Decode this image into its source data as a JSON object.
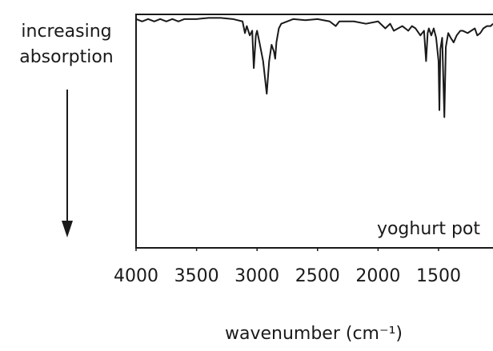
{
  "chart_data": {
    "type": "line",
    "y_label": "increasing absorption",
    "x_label": "wavenumber (cm⁻¹)",
    "annotation": "yoghurt pot",
    "x": [
      4000,
      3950,
      3900,
      3850,
      3800,
      3750,
      3700,
      3650,
      3600,
      3500,
      3400,
      3300,
      3200,
      3120,
      3100,
      3085,
      3060,
      3040,
      3027,
      3010,
      3000,
      2980,
      2950,
      2920,
      2900,
      2880,
      2860,
      2850,
      2840,
      2820,
      2800,
      2700,
      2600,
      2500,
      2400,
      2350,
      2320,
      2200,
      2100,
      2000,
      1940,
      1900,
      1870,
      1800,
      1750,
      1720,
      1690,
      1650,
      1620,
      1603,
      1590,
      1580,
      1560,
      1540,
      1520,
      1500,
      1493,
      1485,
      1470,
      1452,
      1440,
      1420,
      1400,
      1375,
      1350,
      1320,
      1300,
      1260,
      1200,
      1180,
      1155,
      1130,
      1100,
      1070,
      1050
    ],
    "y": [
      2,
      3,
      2,
      3,
      2,
      3,
      2,
      3,
      2,
      2,
      1.5,
      1.5,
      2,
      3,
      8,
      5,
      9,
      7,
      23,
      9,
      7,
      12,
      20,
      34,
      20,
      13,
      16,
      19,
      12,
      6,
      4,
      2,
      2.5,
      2,
      3,
      5,
      3,
      3,
      4,
      3,
      6,
      4,
      7,
      5,
      7,
      5,
      6,
      9,
      7,
      20,
      8,
      6,
      9,
      6,
      10,
      20,
      41,
      15,
      10,
      44,
      14,
      8,
      10,
      12,
      9,
      7,
      7,
      8,
      6,
      9,
      8,
      6,
      5,
      5,
      4
    ],
    "color": "#1a1a1a",
    "xlim": [
      4000,
      1050
    ],
    "ylim": [
      0,
      100
    ],
    "xticks": [
      4000,
      3500,
      3000,
      2500,
      2000,
      1500
    ]
  }
}
